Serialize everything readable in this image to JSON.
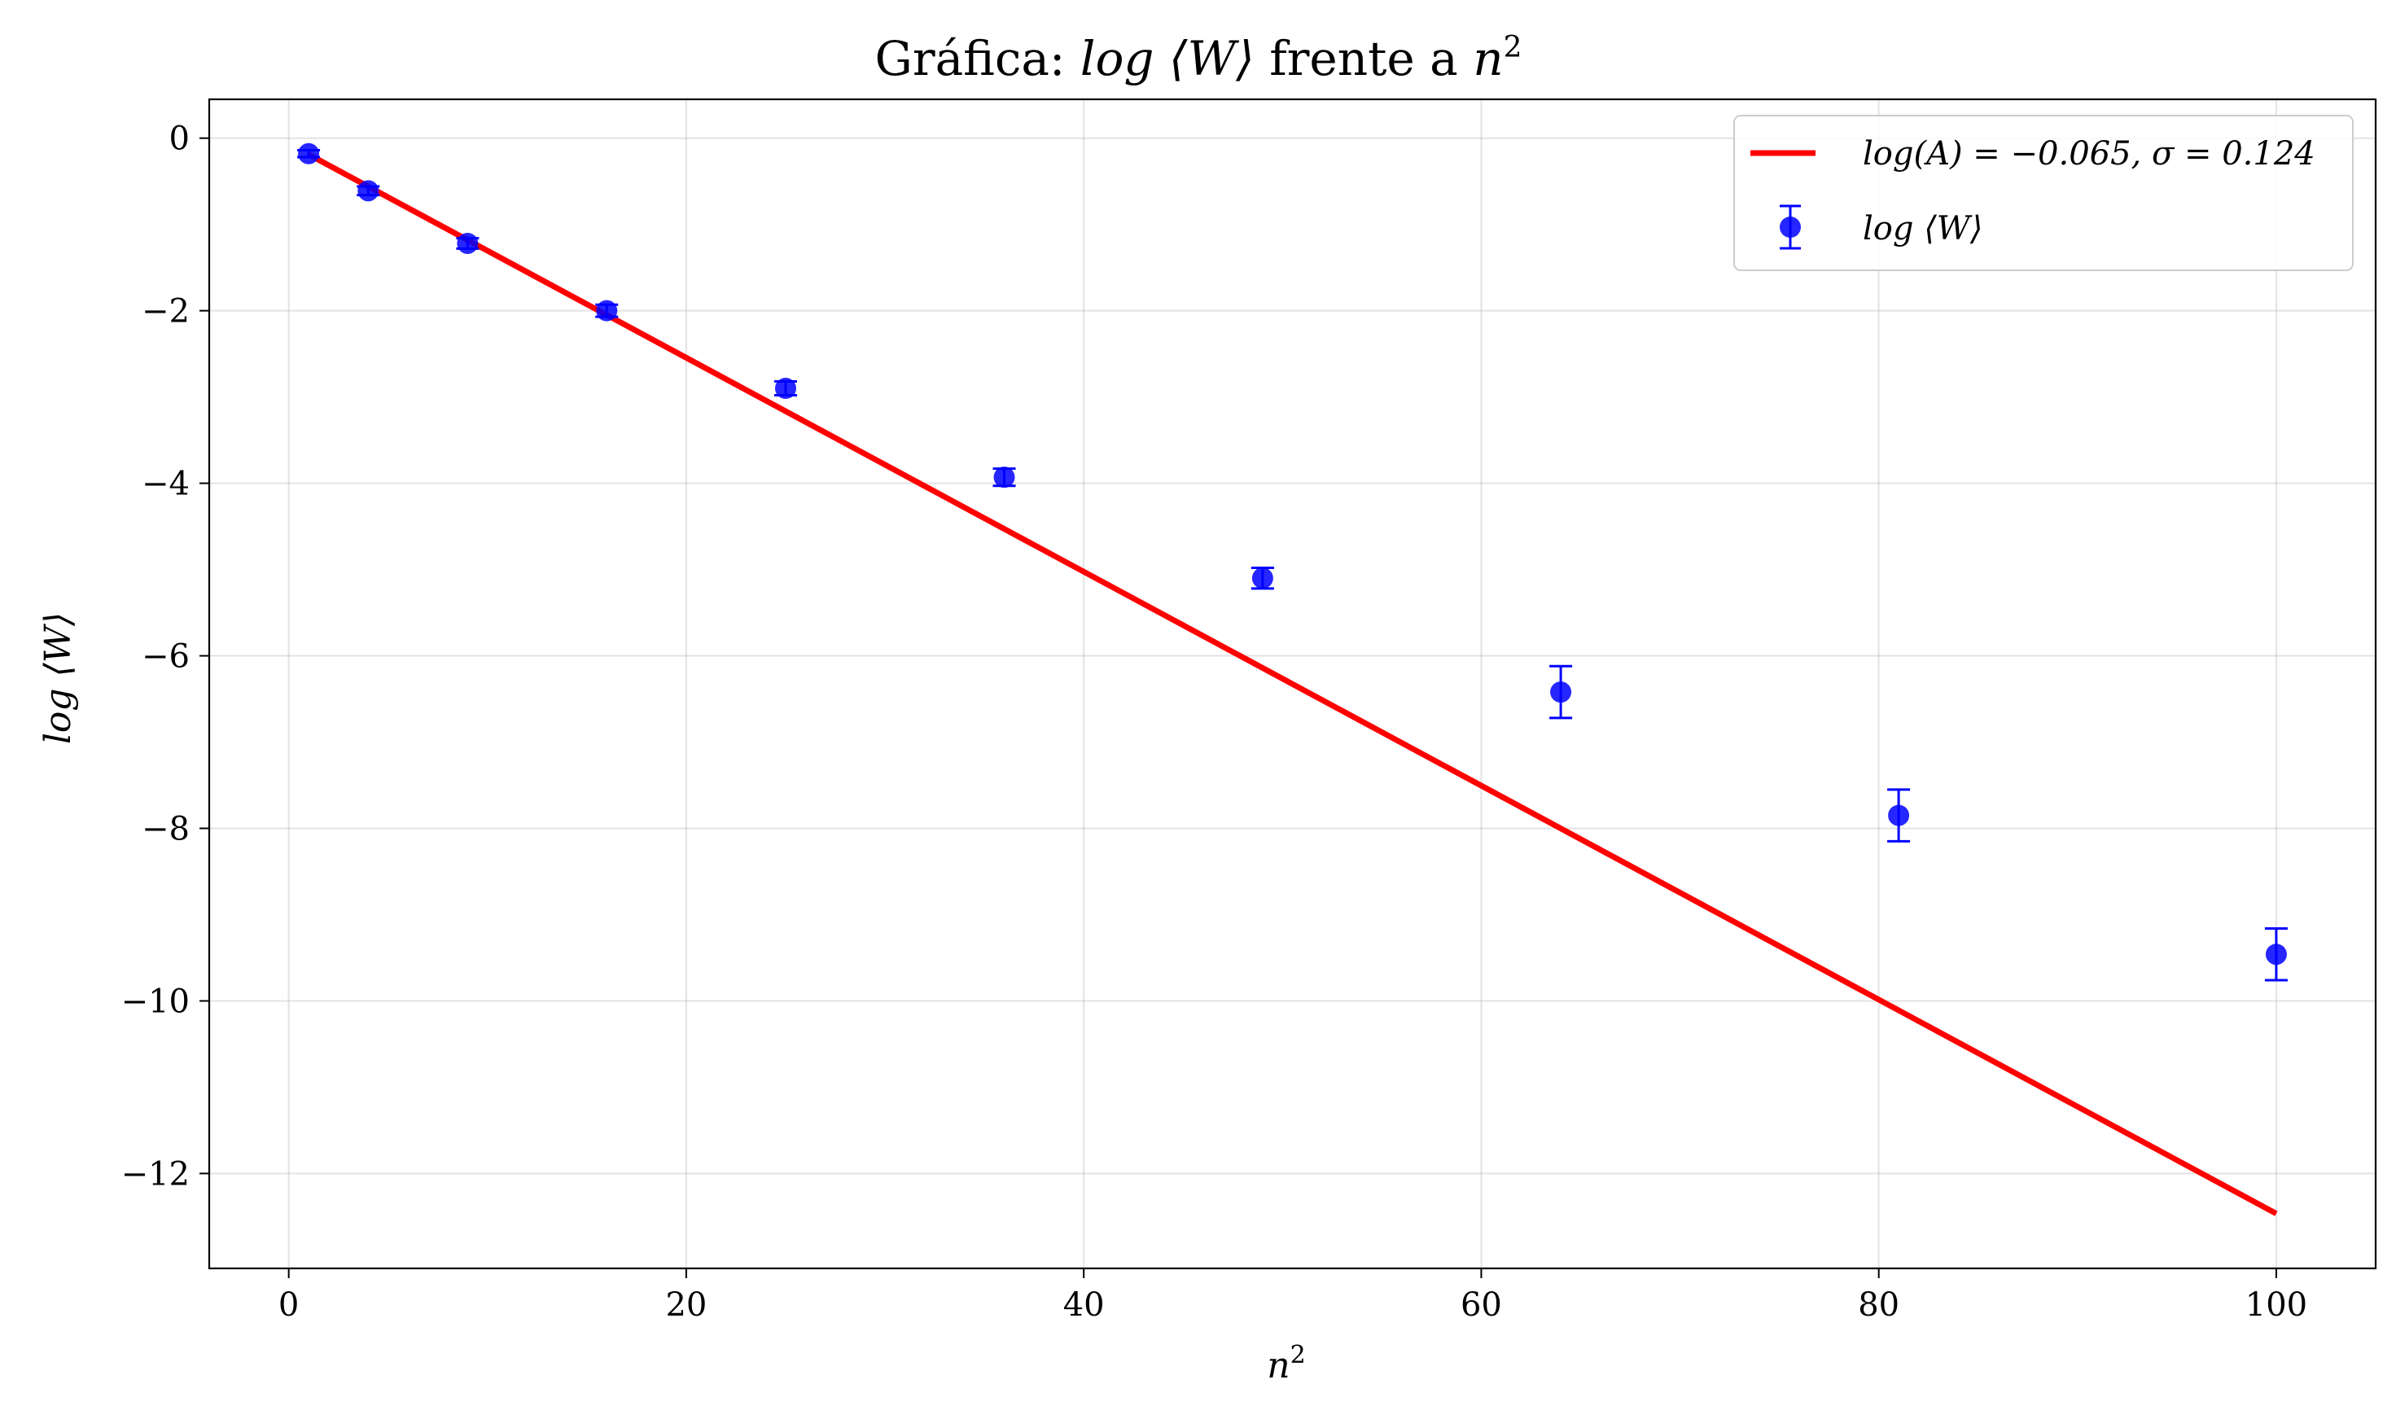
{
  "chart_data": {
    "type": "scatter",
    "title": {
      "prefix": "Gráfica: ",
      "math": "log ⟨W⟩",
      "middle": " frente a ",
      "var": "n",
      "sup": "2"
    },
    "xlabel": {
      "var": "n",
      "sup": "2"
    },
    "ylabel": "log ⟨W⟩",
    "xlim": [
      -4,
      105
    ],
    "ylim": [
      -13.1,
      0.45
    ],
    "xticks": [
      0,
      20,
      40,
      60,
      80,
      100
    ],
    "yticks": [
      0,
      -2,
      -4,
      -6,
      -8,
      -10,
      -12
    ],
    "ytick_labels": [
      "0",
      "−2",
      "−4",
      "−6",
      "−8",
      "−10",
      "−12"
    ],
    "grid": true,
    "legend_position": "top-right",
    "series": [
      {
        "name": "log ⟨W⟩",
        "kind": "errorbar",
        "color": "#0000ff",
        "x": [
          1,
          4,
          9,
          16,
          25,
          36,
          49,
          64,
          81,
          100
        ],
        "y": [
          -0.18,
          -0.61,
          -1.22,
          -2.0,
          -2.9,
          -3.93,
          -5.1,
          -6.42,
          -7.85,
          -9.46
        ],
        "yerr": [
          0.04,
          0.05,
          0.06,
          0.07,
          0.08,
          0.1,
          0.12,
          0.3,
          0.3,
          0.3
        ]
      },
      {
        "name": "log(A) = −0.065, σ = 0.124",
        "kind": "line",
        "color": "#ff0000",
        "x": [
          1,
          100
        ],
        "y": [
          -0.189,
          -12.465
        ]
      }
    ],
    "legend": {
      "fit_label": "log(A) = −0.065, σ = 0.124",
      "data_label": "log ⟨W⟩"
    }
  }
}
